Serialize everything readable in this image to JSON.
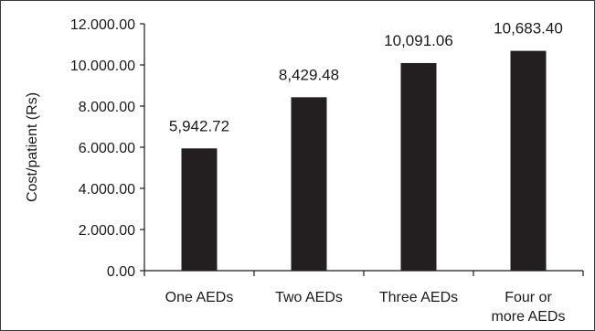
{
  "chart_data": {
    "type": "bar",
    "categories": [
      [
        "One AEDs"
      ],
      [
        "Two AEDs"
      ],
      [
        "Three AEDs"
      ],
      [
        "Four or",
        "more AEDs"
      ]
    ],
    "values": [
      5942.72,
      8429.48,
      10091.06,
      10683.4
    ],
    "data_labels": [
      "5,942.72",
      "8,429.48",
      "10,091.06",
      "10,683.40"
    ],
    "title": "",
    "xlabel": "",
    "ylabel": "Cost/patient (Rs)",
    "ylim": [
      0,
      12000
    ],
    "yticks": [
      0,
      2000,
      4000,
      6000,
      8000,
      10000,
      12000
    ],
    "ytick_labels": [
      "0.00",
      "2.000.00",
      "4.000.00",
      "6.000.00",
      "8.000.00",
      "10.000.00",
      "12.000.00"
    ],
    "grid": false,
    "legend": "none",
    "bar_color": "#231f20"
  }
}
